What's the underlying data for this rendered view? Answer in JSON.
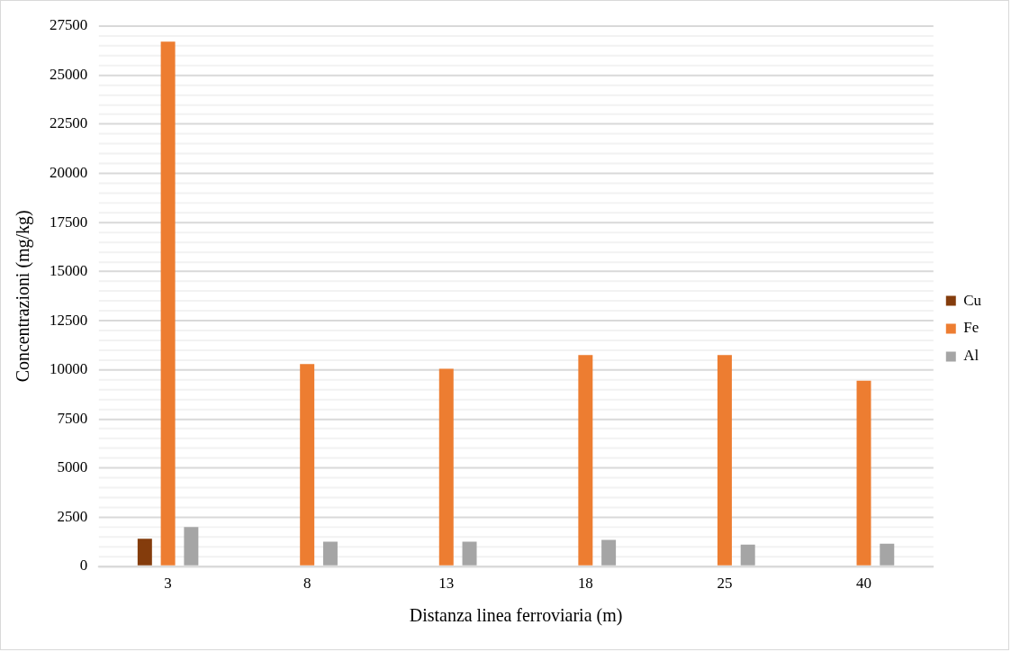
{
  "chart_data": {
    "type": "bar",
    "xlabel": "Distanza linea ferroviaria (m)",
    "ylabel": "Concentrazioni (mg/kg)",
    "categories": [
      "3",
      "8",
      "13",
      "18",
      "25",
      "40"
    ],
    "series": [
      {
        "name": "Cu",
        "color": "#843c0c",
        "values": [
          1400,
          null,
          null,
          null,
          null,
          null
        ]
      },
      {
        "name": "Fe",
        "color": "#ed7d31",
        "values": [
          26700,
          10300,
          10050,
          10750,
          10750,
          9450
        ]
      },
      {
        "name": "Al",
        "color": "#a5a5a5",
        "values": [
          2000,
          1250,
          1250,
          1350,
          1100,
          1150
        ]
      }
    ],
    "ylim": [
      0,
      27500
    ],
    "yticks": [
      0,
      {
        "value": 500,
        "label": null
      },
      {
        "value": 1000,
        "label": null
      },
      {
        "value": 1500,
        "label": null
      },
      {
        "value": 2000,
        "label": null
      },
      2500,
      {
        "value": 3000,
        "label": null
      },
      {
        "value": 3500,
        "label": null
      },
      {
        "value": 4000,
        "label": null
      },
      {
        "value": 4500,
        "label": null
      },
      5000,
      {
        "value": 5500,
        "label": null
      },
      {
        "value": 6000,
        "label": null
      },
      {
        "value": 6500,
        "label": null
      },
      {
        "value": 7000,
        "label": null
      },
      7500,
      {
        "value": 8000,
        "label": null
      },
      {
        "value": 8500,
        "label": null
      },
      {
        "value": 9000,
        "label": null
      },
      {
        "value": 9500,
        "label": null
      },
      10000,
      {
        "value": 10500,
        "label": null
      },
      {
        "value": 11000,
        "label": null
      },
      {
        "value": 11500,
        "label": null
      },
      {
        "value": 12000,
        "label": null
      },
      12500,
      {
        "value": 13000,
        "label": null
      },
      {
        "value": 13500,
        "label": null
      },
      {
        "value": 14000,
        "label": null
      },
      {
        "value": 14500,
        "label": null
      },
      15000,
      {
        "value": 15500,
        "label": null
      },
      {
        "value": 16000,
        "label": null
      },
      {
        "value": 16500,
        "label": null
      },
      {
        "value": 17000,
        "label": null
      },
      17500,
      {
        "value": 18000,
        "label": null
      },
      {
        "value": 18500,
        "label": null
      },
      {
        "value": 19000,
        "label": null
      },
      {
        "value": 19500,
        "label": null
      },
      20000,
      {
        "value": 20500,
        "label": null
      },
      {
        "value": 21000,
        "label": null
      },
      {
        "value": 21500,
        "label": null
      },
      {
        "value": 22000,
        "label": null
      },
      22500,
      {
        "value": 23000,
        "label": null
      },
      {
        "value": 23500,
        "label": null
      },
      {
        "value": 24000,
        "label": null
      },
      {
        "value": 24500,
        "label": null
      },
      25000,
      {
        "value": 25500,
        "label": null
      },
      {
        "value": 26000,
        "label": null
      },
      {
        "value": 26500,
        "label": null
      },
      {
        "value": 27000,
        "label": null
      },
      27500
    ],
    "grid": "y",
    "legend": "right"
  }
}
